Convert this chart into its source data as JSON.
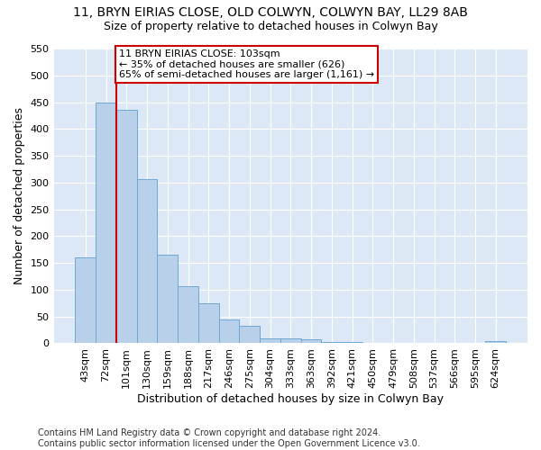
{
  "title1": "11, BRYN EIRIAS CLOSE, OLD COLWYN, COLWYN BAY, LL29 8AB",
  "title2": "Size of property relative to detached houses in Colwyn Bay",
  "xlabel": "Distribution of detached houses by size in Colwyn Bay",
  "ylabel": "Number of detached properties",
  "categories": [
    "43sqm",
    "72sqm",
    "101sqm",
    "130sqm",
    "159sqm",
    "188sqm",
    "217sqm",
    "246sqm",
    "275sqm",
    "304sqm",
    "333sqm",
    "363sqm",
    "392sqm",
    "421sqm",
    "450sqm",
    "479sqm",
    "508sqm",
    "537sqm",
    "566sqm",
    "595sqm",
    "624sqm"
  ],
  "values": [
    161,
    449,
    435,
    307,
    165,
    106,
    74,
    44,
    32,
    10,
    9,
    8,
    3,
    2,
    1,
    1,
    0,
    0,
    0,
    0,
    4
  ],
  "bar_color": "#b8d0ea",
  "bar_edge_color": "#6fa8d4",
  "property_line_index": 2,
  "property_line_color": "#cc0000",
  "annotation_text": "11 BRYN EIRIAS CLOSE: 103sqm\n← 35% of detached houses are smaller (626)\n65% of semi-detached houses are larger (1,161) →",
  "annotation_box_color": "#ffffff",
  "annotation_box_edge_color": "#cc0000",
  "ylim": [
    0,
    550
  ],
  "yticks": [
    0,
    50,
    100,
    150,
    200,
    250,
    300,
    350,
    400,
    450,
    500,
    550
  ],
  "background_color": "#dce8f5",
  "grid_color": "#ffffff",
  "footer": "Contains HM Land Registry data © Crown copyright and database right 2024.\nContains public sector information licensed under the Open Government Licence v3.0.",
  "title_fontsize": 10,
  "subtitle_fontsize": 9,
  "axis_label_fontsize": 9,
  "tick_fontsize": 8,
  "annotation_fontsize": 8,
  "footer_fontsize": 7
}
